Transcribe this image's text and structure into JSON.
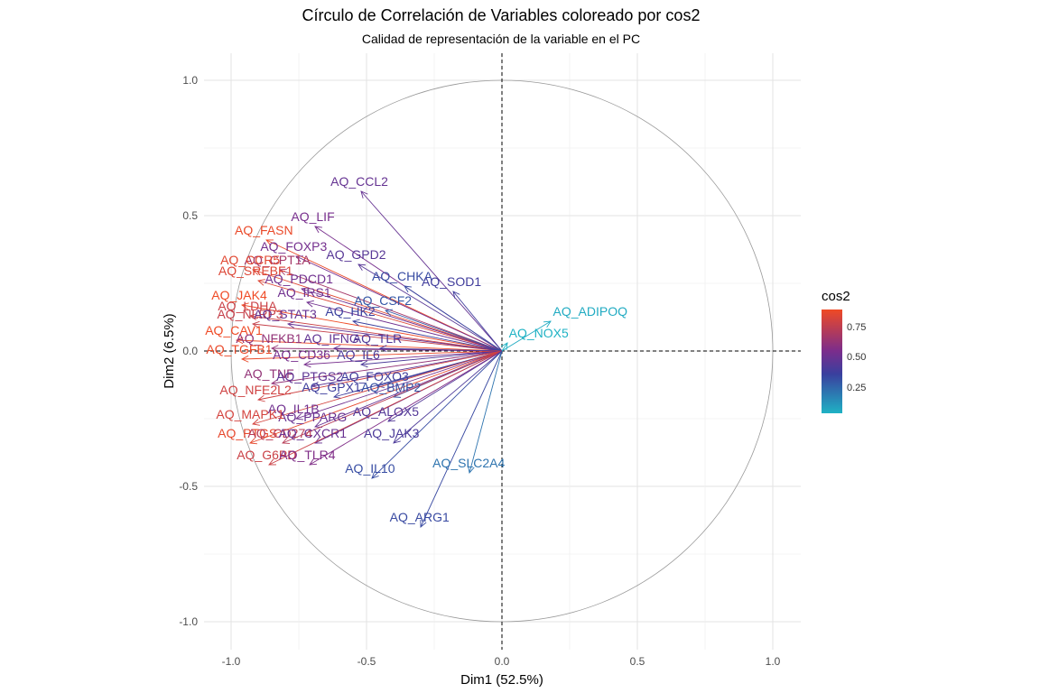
{
  "title": "Círculo de Correlación de Variables coloreado por cos2",
  "subtitle": "Calidad de representación de la variable en el PC",
  "legend": {
    "title": "cos2",
    "ticks": [
      "0.75",
      "0.50",
      "0.25"
    ],
    "colors": {
      "high": "#ef4a25",
      "mid": "#7b2d8c",
      "mid2": "#3a3f9e",
      "low": "#1fb2c4"
    }
  },
  "chart_data": {
    "type": "scatter",
    "subtype": "pca-variable-correlation-circle",
    "title": "Círculo de Correlación de Variables coloreado por cos2",
    "subtitle": "Calidad de representación de la variable en el PC",
    "xlabel": "Dim1 (52.5%)",
    "ylabel": "Dim2 (6.5%)",
    "xlim": [
      -1.1,
      1.1
    ],
    "ylim": [
      -1.1,
      1.1
    ],
    "xticks": [
      "-1.0",
      "-0.5",
      "0.0",
      "0.5",
      "1.0"
    ],
    "yticks": [
      "1.0",
      "0.5",
      "0.0",
      "-0.5",
      "-1.0"
    ],
    "grid": true,
    "unit_circle": true,
    "color_scale": "cos2",
    "legend_position": "right",
    "variables": [
      {
        "name": "AQ_CCL2",
        "x": -0.52,
        "y": 0.59,
        "cos2": 0.62
      },
      {
        "name": "AQ_LIF",
        "x": -0.69,
        "y": 0.46,
        "cos2": 0.67
      },
      {
        "name": "AQ_FASN",
        "x": -0.87,
        "y": 0.41,
        "cos2": 0.92
      },
      {
        "name": "AQ_FOXP3",
        "x": -0.76,
        "y": 0.35,
        "cos2": 0.66
      },
      {
        "name": "AQ_CPT1A",
        "x": -0.82,
        "y": 0.3,
        "cos2": 0.77
      },
      {
        "name": "AQ_GPD2",
        "x": -0.53,
        "y": 0.32,
        "cos2": 0.58
      },
      {
        "name": "AQ_CCR5",
        "x": -0.92,
        "y": 0.3,
        "cos2": 0.9
      },
      {
        "name": "AQ_SREBF1",
        "x": -0.9,
        "y": 0.26,
        "cos2": 0.89
      },
      {
        "name": "AQ_PDCD1",
        "x": -0.74,
        "y": 0.23,
        "cos2": 0.65
      },
      {
        "name": "AQ_CHKA",
        "x": -0.36,
        "y": 0.24,
        "cos2": 0.45
      },
      {
        "name": "AQ_SOD1",
        "x": -0.18,
        "y": 0.22,
        "cos2": 0.52
      },
      {
        "name": "AQ_JAK4",
        "x": -0.96,
        "y": 0.17,
        "cos2": 0.93
      },
      {
        "name": "AQ_IRS1",
        "x": -0.72,
        "y": 0.18,
        "cos2": 0.65
      },
      {
        "name": "AQ_CSF2",
        "x": -0.43,
        "y": 0.15,
        "cos2": 0.4
      },
      {
        "name": "AQ_LDHA",
        "x": -0.93,
        "y": 0.13,
        "cos2": 0.85
      },
      {
        "name": "AQ_NLRP3",
        "x": -0.92,
        "y": 0.1,
        "cos2": 0.84
      },
      {
        "name": "AQ_STAT3",
        "x": -0.79,
        "y": 0.1,
        "cos2": 0.62
      },
      {
        "name": "AQ_HK2",
        "x": -0.55,
        "y": 0.11,
        "cos2": 0.5
      },
      {
        "name": "AQ_ADIPOQ",
        "x": 0.18,
        "y": 0.11,
        "cos2": 0.05
      },
      {
        "name": "AQ_NOX5",
        "x": 0.02,
        "y": 0.03,
        "cos2": 0.02
      },
      {
        "name": "AQ_CAV1",
        "x": -0.98,
        "y": 0.04,
        "cos2": 0.93
      },
      {
        "name": "AQ_NFKB1",
        "x": -0.85,
        "y": 0.01,
        "cos2": 0.73
      },
      {
        "name": "AQ_IFNG",
        "x": -0.62,
        "y": 0.01,
        "cos2": 0.61
      },
      {
        "name": "AQ_TLR",
        "x": -0.45,
        "y": 0.01,
        "cos2": 0.56
      },
      {
        "name": "AQ_TGFB1",
        "x": -0.96,
        "y": -0.03,
        "cos2": 0.92
      },
      {
        "name": "AQ_CD36",
        "x": -0.73,
        "y": -0.05,
        "cos2": 0.67
      },
      {
        "name": "AQ_IL6",
        "x": -0.52,
        "y": -0.05,
        "cos2": 0.55
      },
      {
        "name": "AQ_TNF",
        "x": -0.85,
        "y": -0.12,
        "cos2": 0.73
      },
      {
        "name": "AQ_PTGS2",
        "x": -0.7,
        "y": -0.13,
        "cos2": 0.6
      },
      {
        "name": "AQ_FOXO3",
        "x": -0.46,
        "y": -0.13,
        "cos2": 0.52
      },
      {
        "name": "AQ_GPX1",
        "x": -0.62,
        "y": -0.17,
        "cos2": 0.51
      },
      {
        "name": "AQ_BMP2",
        "x": -0.4,
        "y": -0.17,
        "cos2": 0.43
      },
      {
        "name": "AQ_NFE2L2",
        "x": -0.9,
        "y": -0.18,
        "cos2": 0.86
      },
      {
        "name": "AQ_IL1B",
        "x": -0.76,
        "y": -0.25,
        "cos2": 0.65
      },
      {
        "name": "AQ_PPARG",
        "x": -0.69,
        "y": -0.28,
        "cos2": 0.63
      },
      {
        "name": "AQ_ALOX5",
        "x": -0.42,
        "y": -0.26,
        "cos2": 0.57
      },
      {
        "name": "AQ_MAPK1",
        "x": -0.92,
        "y": -0.27,
        "cos2": 0.87
      },
      {
        "name": "AQ_PTGS",
        "x": -0.93,
        "y": -0.34,
        "cos2": 0.91
      },
      {
        "name": "AQ_CD274",
        "x": -0.81,
        "y": -0.34,
        "cos2": 0.81
      },
      {
        "name": "AQ_CXCR1",
        "x": -0.69,
        "y": -0.34,
        "cos2": 0.63
      },
      {
        "name": "AQ_JAK3",
        "x": -0.4,
        "y": -0.34,
        "cos2": 0.55
      },
      {
        "name": "AQ_G6PD",
        "x": -0.86,
        "y": -0.42,
        "cos2": 0.85
      },
      {
        "name": "AQ_TLR4",
        "x": -0.71,
        "y": -0.42,
        "cos2": 0.69
      },
      {
        "name": "AQ_SLC2A4",
        "x": -0.12,
        "y": -0.45,
        "cos2": 0.28
      },
      {
        "name": "AQ_IL10",
        "x": -0.48,
        "y": -0.47,
        "cos2": 0.44
      },
      {
        "name": "AQ_ARG1",
        "x": -0.3,
        "y": -0.65,
        "cos2": 0.46
      }
    ]
  }
}
